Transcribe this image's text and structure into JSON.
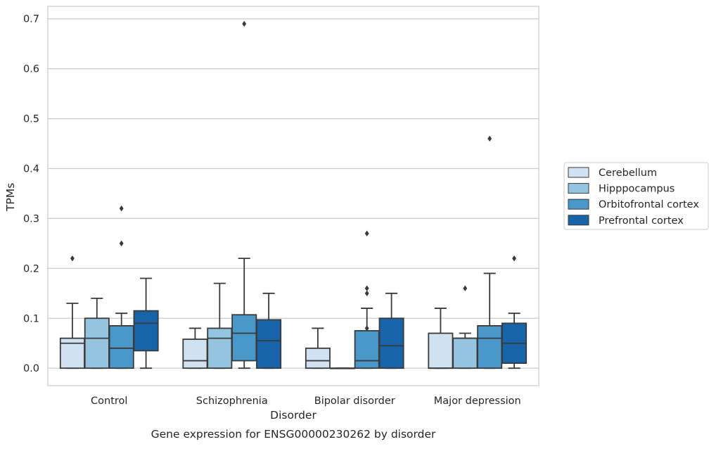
{
  "chart_data": {
    "type": "box",
    "xlabel": "Disorder",
    "ylabel": "TPMs",
    "caption": "Gene expression for ENSG00000230262 by disorder",
    "ylim": [
      -0.035,
      0.725
    ],
    "yticks": [
      0.0,
      0.1,
      0.2,
      0.3,
      0.4,
      0.5,
      0.6,
      0.7
    ],
    "ytick_labels": [
      "0.0",
      "0.1",
      "0.2",
      "0.3",
      "0.4",
      "0.5",
      "0.6",
      "0.7"
    ],
    "grid": "horizontal",
    "legend_position": "right",
    "categories": [
      "Control",
      "Schizophrenia",
      "Bipolar disorder",
      "Major depression"
    ],
    "series": [
      {
        "name": "Cerebellum",
        "color": "#d0e1f2",
        "boxes": [
          {
            "whislo": 0.0,
            "q1": 0.0,
            "med": 0.05,
            "q3": 0.06,
            "whishi": 0.13,
            "fliers": [
              0.22
            ]
          },
          {
            "whislo": 0.0,
            "q1": 0.0,
            "med": 0.015,
            "q3": 0.058,
            "whishi": 0.08,
            "fliers": []
          },
          {
            "whislo": 0.0,
            "q1": 0.0,
            "med": 0.015,
            "q3": 0.04,
            "whishi": 0.08,
            "fliers": []
          },
          {
            "whislo": 0.0,
            "q1": 0.0,
            "med": 0.0,
            "q3": 0.07,
            "whishi": 0.12,
            "fliers": []
          }
        ]
      },
      {
        "name": "Hipppocampus",
        "color": "#94c4df",
        "boxes": [
          {
            "whislo": 0.0,
            "q1": 0.0,
            "med": 0.06,
            "q3": 0.1,
            "whishi": 0.14,
            "fliers": []
          },
          {
            "whislo": 0.0,
            "q1": 0.0,
            "med": 0.06,
            "q3": 0.08,
            "whishi": 0.17,
            "fliers": []
          },
          {
            "whislo": 0.0,
            "q1": 0.0,
            "med": 0.0,
            "q3": 0.0,
            "whishi": 0.0,
            "fliers": []
          },
          {
            "whislo": 0.0,
            "q1": 0.0,
            "med": 0.06,
            "q3": 0.06,
            "whishi": 0.07,
            "fliers": [
              0.16
            ]
          }
        ]
      },
      {
        "name": "Orbitofrontal cortex",
        "color": "#4a98c9",
        "boxes": [
          {
            "whislo": 0.0,
            "q1": 0.0,
            "med": 0.04,
            "q3": 0.085,
            "whishi": 0.11,
            "fliers": [
              0.25,
              0.32
            ]
          },
          {
            "whislo": 0.0,
            "q1": 0.015,
            "med": 0.07,
            "q3": 0.107,
            "whishi": 0.22,
            "fliers": [
              0.69
            ]
          },
          {
            "whislo": 0.0,
            "q1": 0.0,
            "med": 0.015,
            "q3": 0.075,
            "whishi": 0.12,
            "fliers": [
              0.08,
              0.15,
              0.16,
              0.27
            ]
          },
          {
            "whislo": 0.0,
            "q1": 0.0,
            "med": 0.06,
            "q3": 0.085,
            "whishi": 0.19,
            "fliers": [
              0.46
            ]
          }
        ]
      },
      {
        "name": "Prefrontal cortex",
        "color": "#1764ab",
        "boxes": [
          {
            "whislo": 0.0,
            "q1": 0.035,
            "med": 0.09,
            "q3": 0.115,
            "whishi": 0.18,
            "fliers": []
          },
          {
            "whislo": 0.0,
            "q1": 0.0,
            "med": 0.055,
            "q3": 0.097,
            "whishi": 0.15,
            "fliers": []
          },
          {
            "whislo": 0.0,
            "q1": 0.0,
            "med": 0.045,
            "q3": 0.1,
            "whishi": 0.15,
            "fliers": []
          },
          {
            "whislo": 0.0,
            "q1": 0.01,
            "med": 0.05,
            "q3": 0.09,
            "whishi": 0.11,
            "fliers": [
              0.22
            ]
          }
        ]
      }
    ]
  }
}
